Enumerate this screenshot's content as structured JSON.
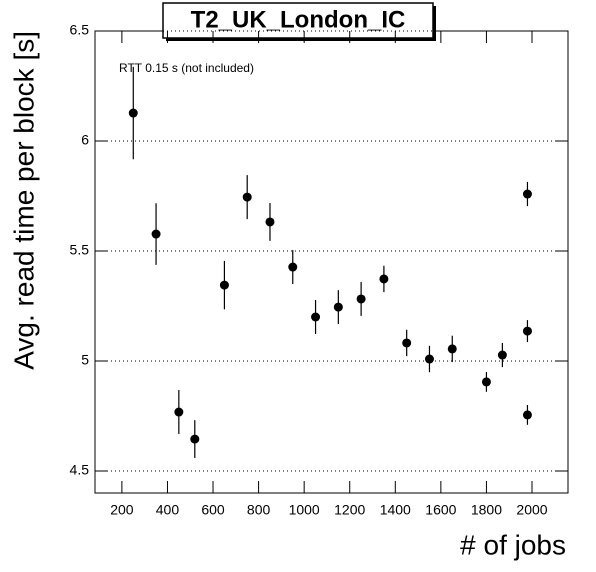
{
  "chart_data": {
    "type": "errorbar",
    "title": "T2_UK_London_IC",
    "annotation": "RTT 0.15 s (not included)",
    "x_label": "# of jobs",
    "y_label": "Avg. read time per block [s]",
    "x": [
      250,
      350,
      450,
      520,
      650,
      750,
      850,
      950,
      1050,
      1150,
      1250,
      1350,
      1450,
      1550,
      1650,
      1800,
      1870,
      1980,
      1980,
      1980
    ],
    "values": [
      6.127,
      5.577,
      4.768,
      4.645,
      5.345,
      5.745,
      5.632,
      5.427,
      5.2,
      5.245,
      5.282,
      5.373,
      5.082,
      5.009,
      5.055,
      4.905,
      5.027,
      5.759,
      5.136,
      4.755
    ],
    "errors": [
      0.21,
      0.14,
      0.1,
      0.086,
      0.11,
      0.1,
      0.086,
      0.077,
      0.077,
      0.077,
      0.077,
      0.06,
      0.06,
      0.06,
      0.06,
      0.045,
      0.055,
      0.055,
      0.05,
      0.045
    ],
    "color": "#000000",
    "xlim": [
      82,
      2158
    ],
    "ylim": [
      4.4,
      6.5
    ],
    "xticks": [
      200,
      400,
      600,
      800,
      1000,
      1200,
      1400,
      1600,
      1800,
      2000
    ],
    "yticks": [
      4.5,
      5,
      5.5,
      6,
      6.5
    ],
    "grid": true
  }
}
